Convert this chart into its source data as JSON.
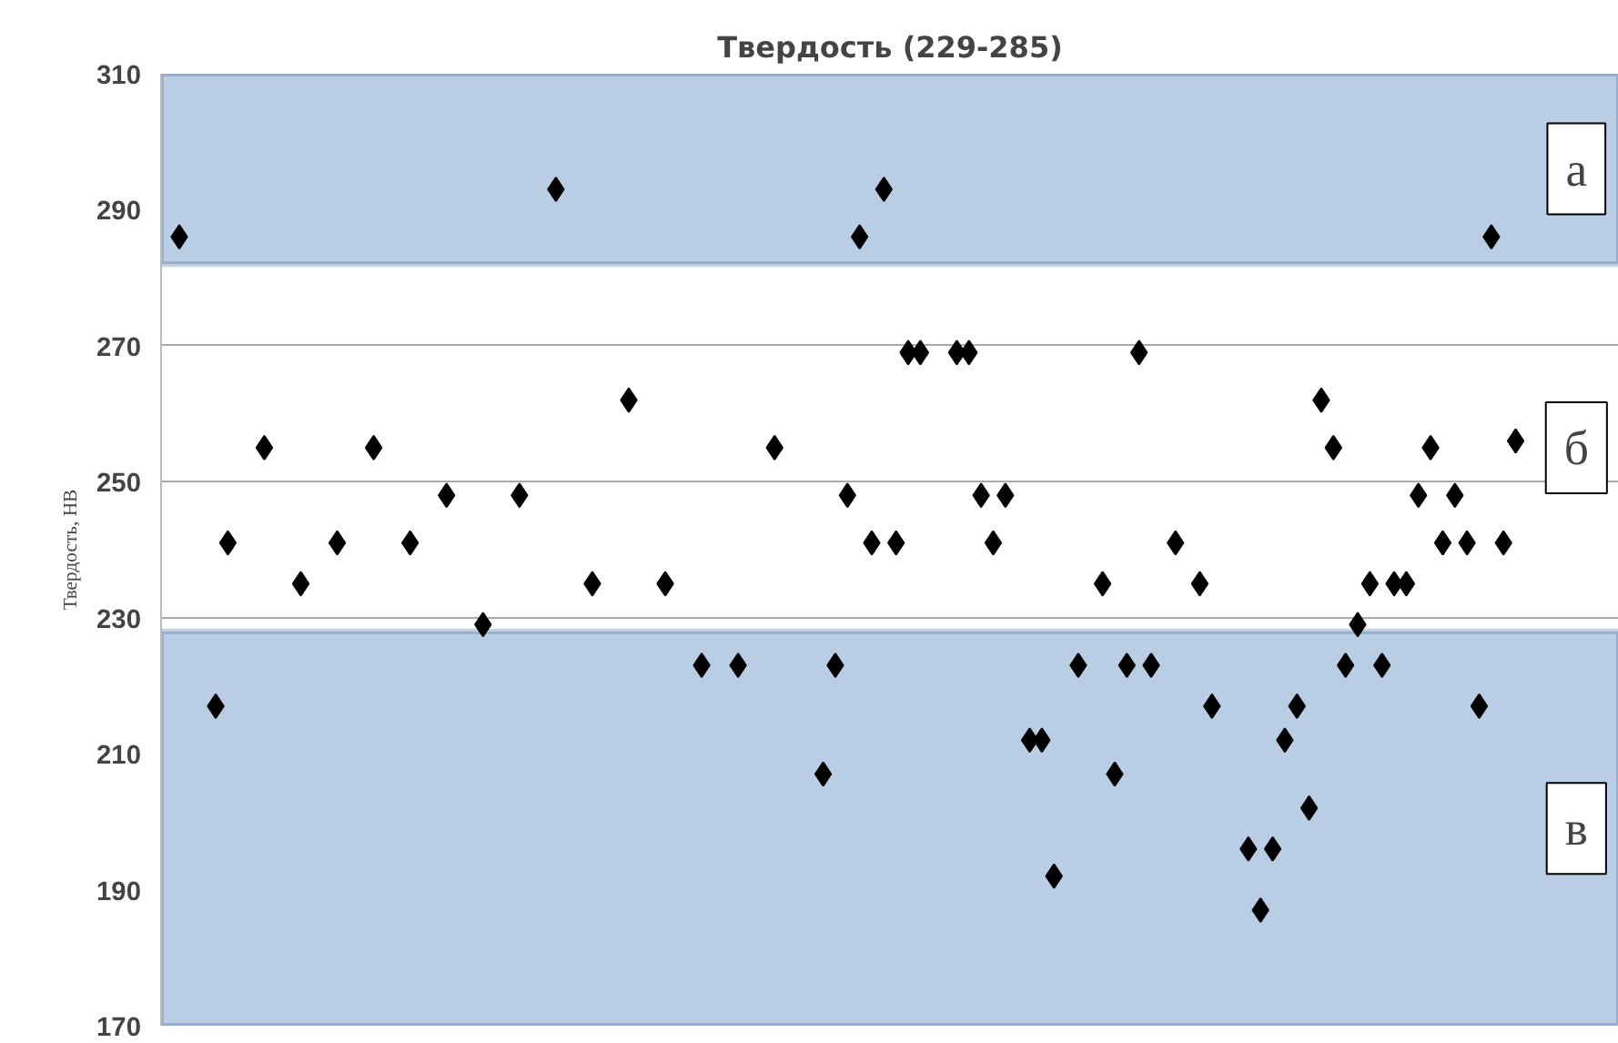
{
  "chart_data": {
    "type": "scatter",
    "title": "Твердость (229-285)",
    "ylabel": "Твердость, НВ",
    "categories": [
      null,
      null,
      null,
      null,
      null,
      null,
      null,
      null,
      null,
      null,
      null,
      null,
      null,
      null,
      null,
      null,
      null,
      null,
      null,
      null,
      null,
      null,
      null,
      null,
      null,
      null,
      null,
      null,
      null,
      null,
      null,
      null,
      null,
      null,
      null,
      null,
      null,
      null,
      null,
      null,
      null,
      null,
      null,
      null,
      null,
      null,
      null,
      null,
      null,
      null,
      null,
      null,
      null,
      null,
      null,
      null,
      null,
      null,
      null,
      null,
      null,
      null,
      null,
      null,
      null,
      null,
      null,
      null,
      null,
      null,
      null,
      null,
      null,
      null,
      null,
      null,
      null,
      null,
      null,
      null,
      null,
      null,
      null,
      null,
      null,
      null,
      null,
      null,
      null,
      null,
      null,
      null,
      null,
      null,
      null,
      null,
      null,
      null,
      null,
      null,
      null,
      null,
      null,
      null,
      null,
      null,
      null,
      null,
      null,
      null,
      null,
      null,
      null,
      null,
      null,
      null,
      null,
      null,
      null,
      null
    ],
    "series": [
      {
        "color": "#000000",
        "values": [
          null,
          286,
          null,
          null,
          217,
          241,
          null,
          null,
          255,
          null,
          null,
          235,
          null,
          null,
          241,
          null,
          null,
          255,
          null,
          null,
          241,
          null,
          null,
          248,
          null,
          null,
          229,
          null,
          null,
          248,
          null,
          null,
          293,
          null,
          null,
          235,
          null,
          null,
          262,
          null,
          null,
          235,
          null,
          null,
          223,
          null,
          null,
          223,
          null,
          null,
          255,
          null,
          null,
          null,
          207,
          223,
          248,
          286,
          241,
          293,
          241,
          269,
          269,
          null,
          null,
          269,
          269,
          248,
          241,
          248,
          null,
          212,
          212,
          192,
          null,
          223,
          null,
          235,
          207,
          223,
          269,
          223,
          null,
          241,
          null,
          235,
          217,
          null,
          null,
          196,
          187,
          196,
          212,
          217,
          202,
          262,
          255,
          223,
          229,
          235,
          223,
          235,
          235,
          248,
          255,
          241,
          248,
          241,
          217,
          286,
          241,
          256,
          null,
          null,
          null,
          null,
          null,
          null,
          null,
          null
        ]
      }
    ],
    "marker": "diamond",
    "ylim": [
      170,
      310
    ],
    "yticks": [
      170,
      190,
      210,
      230,
      250,
      270,
      290,
      310
    ],
    "grid": "y",
    "bands": [
      {
        "axis": "y",
        "from": 282,
        "to": 310,
        "label": "а",
        "color": "#b9cde4"
      },
      {
        "axis": "y",
        "from": 170,
        "to": 228,
        "label": "в",
        "color": "#b9cde4"
      }
    ],
    "annotations": [
      "б"
    ]
  }
}
